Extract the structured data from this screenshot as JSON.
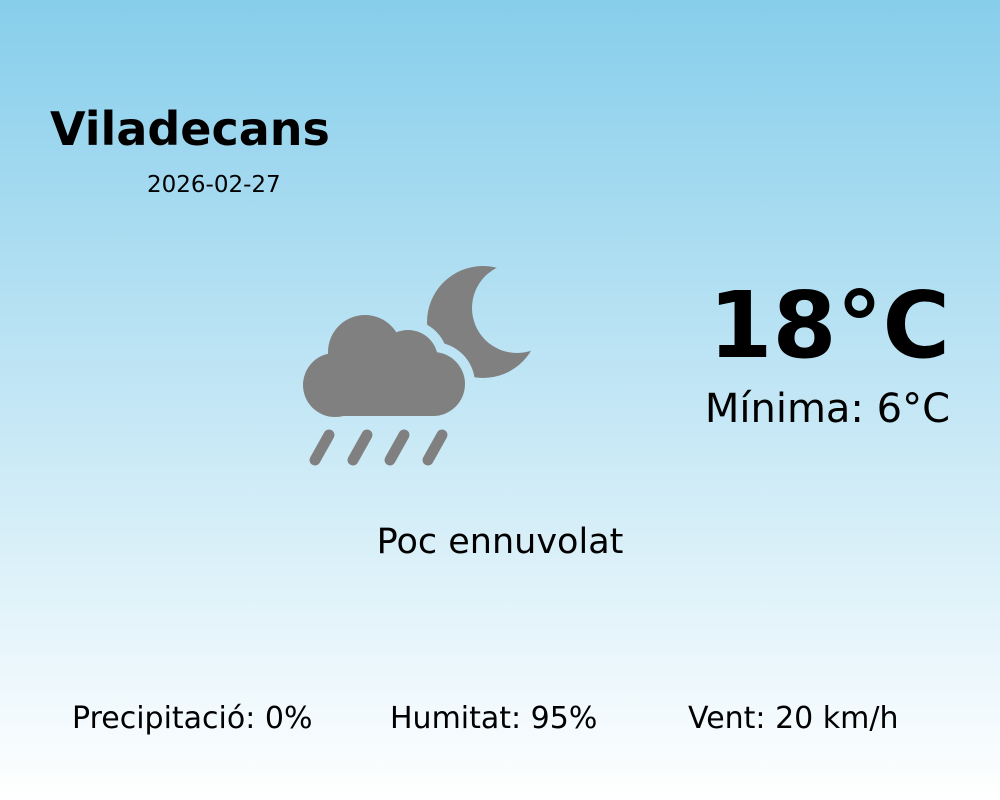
{
  "location": {
    "city": "Viladecans",
    "date": "2026-02-27"
  },
  "current": {
    "temperature": "18°C",
    "minimum": "Mínima: 6°C",
    "condition": "Poc ennuvolat",
    "icon": "cloud-rain-moon-icon",
    "icon_color": "#808080"
  },
  "stats": {
    "precipitation": "Precipitació: 0%",
    "humidity": "Humitat: 95%",
    "wind": "Vent: 20 km/h"
  },
  "colors": {
    "background_top": "#87ceeb",
    "background_bottom": "#ffffff"
  }
}
